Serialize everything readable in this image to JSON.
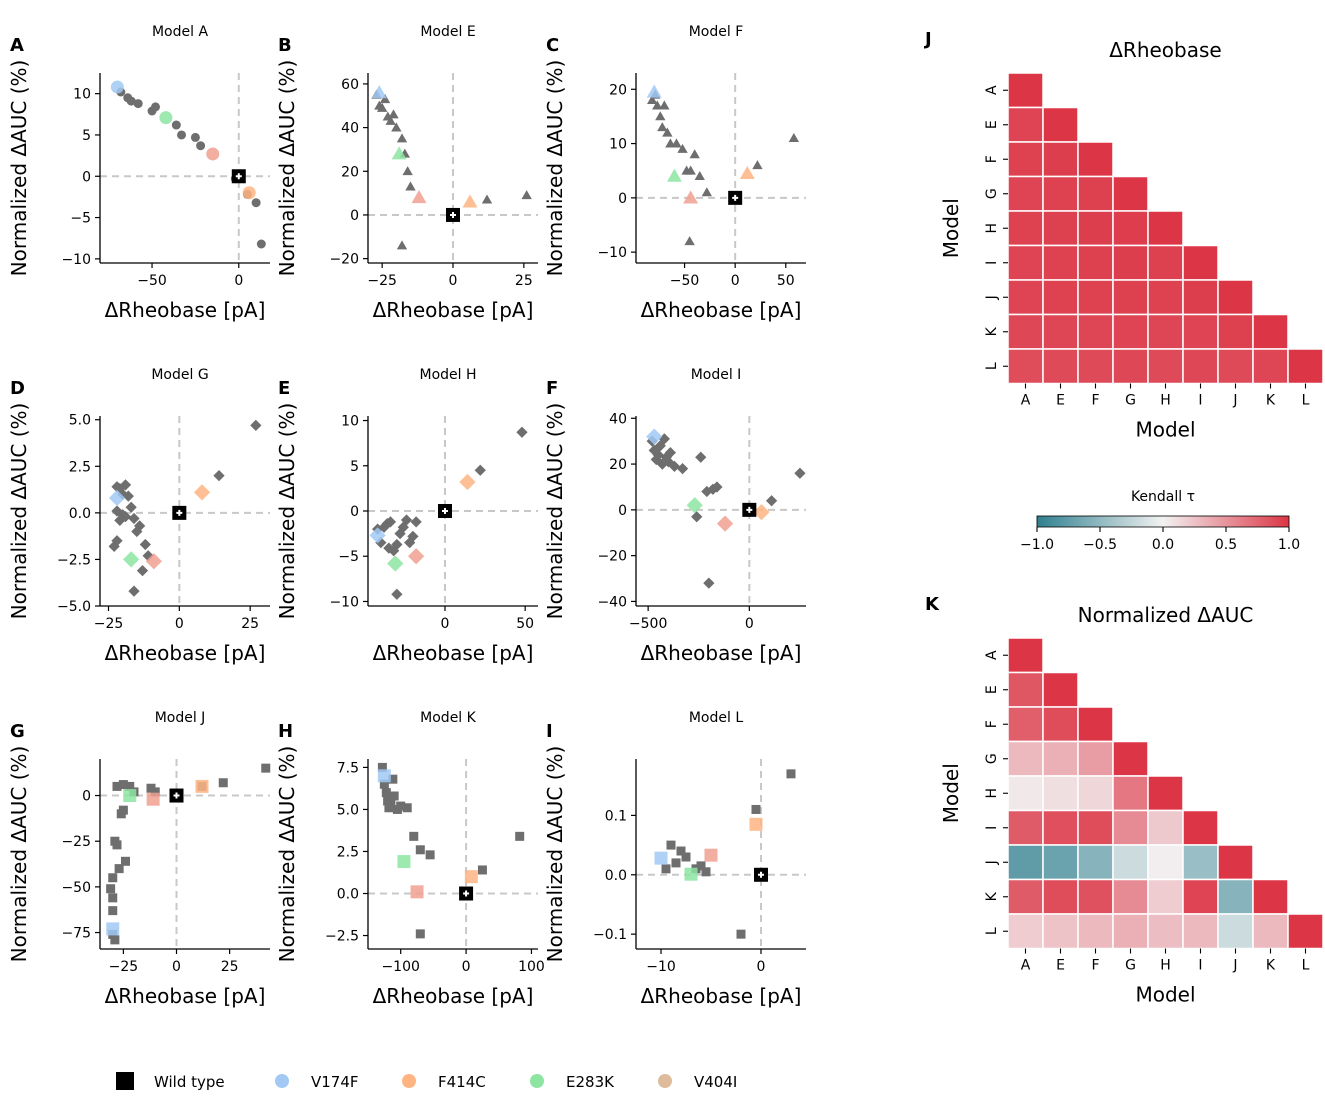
{
  "colors": {
    "wild_type": "#000000",
    "V174F": "#a1c9f4",
    "F414C": "#ffb482",
    "E283K": "#8de5a1",
    "V404I": "#debb9b",
    "V404I_plot": "#f0a090",
    "other": "#6e6e6e",
    "zero_line": "#c8c8c8",
    "cmap_low": "#2f7f8f",
    "cmap_mid": "#f2f2f2",
    "cmap_high": "#dc3545"
  },
  "legend": {
    "items": [
      {
        "label": "Wild type",
        "color": "#000000",
        "marker": "square"
      },
      {
        "label": "V174F",
        "color": "#a1c9f4",
        "marker": "circle"
      },
      {
        "label": "F414C",
        "color": "#ffb482",
        "marker": "circle"
      },
      {
        "label": "E283K",
        "color": "#8de5a1",
        "marker": "circle"
      },
      {
        "label": "V404I",
        "color": "#debb9b",
        "marker": "circle"
      }
    ]
  },
  "chart_data": [
    {
      "panel": "A",
      "type": "scatter",
      "title": "Model A",
      "marker": "circle",
      "xlabel": "ΔRheobase [pA]",
      "ylabel": "Normalized ΔAUC (%)",
      "xlim": [
        -80,
        18
      ],
      "ylim": [
        -10.5,
        12.5
      ],
      "xticks": [
        -50,
        0
      ],
      "yticks": [
        -10,
        -5,
        0,
        5,
        10
      ],
      "points": [
        [
          -68,
          10.2
        ],
        [
          -64,
          9.5
        ],
        [
          -62,
          9.1
        ],
        [
          -58,
          8.8
        ],
        [
          -50,
          7.9
        ],
        [
          -48,
          8.4
        ],
        [
          -36,
          6.2
        ],
        [
          -33,
          5.0
        ],
        [
          -25,
          4.7
        ],
        [
          -22,
          3.7
        ],
        [
          -2,
          -0.3
        ],
        [
          5,
          -2.2
        ],
        [
          10,
          -3.2
        ],
        [
          13,
          -8.2
        ]
      ],
      "mutants": {
        "V174F": [
          -70,
          10.8
        ],
        "E283K": [
          -42,
          7.1
        ],
        "V404I": [
          -15,
          2.7
        ],
        "F414C": [
          6,
          -2.0
        ]
      },
      "wild_type": [
        0,
        0
      ]
    },
    {
      "panel": "B",
      "type": "scatter",
      "title": "Model E",
      "marker": "triangle",
      "xlabel": "ΔRheobase [pA]",
      "ylabel": "Normalized ΔAUC (%)",
      "xlim": [
        -30,
        30
      ],
      "ylim": [
        -22,
        65
      ],
      "xticks": [
        -25,
        0,
        25
      ],
      "yticks": [
        -20,
        0,
        20,
        40,
        60
      ],
      "points": [
        [
          -27,
          55
        ],
        [
          -26,
          50
        ],
        [
          -25,
          49
        ],
        [
          -24,
          53
        ],
        [
          -23,
          45
        ],
        [
          -22,
          43
        ],
        [
          -21,
          46
        ],
        [
          -20,
          40
        ],
        [
          -18,
          35
        ],
        [
          -17,
          28
        ],
        [
          -16,
          20
        ],
        [
          -15,
          13
        ],
        [
          -18,
          -14
        ],
        [
          12,
          7
        ],
        [
          26,
          9
        ],
        [
          0,
          1
        ]
      ],
      "mutants": {
        "V174F": [
          -26,
          56
        ],
        "E283K": [
          -19,
          28
        ],
        "V404I": [
          -12,
          8
        ],
        "F414C": [
          6,
          6
        ]
      },
      "wild_type": [
        0,
        0
      ]
    },
    {
      "panel": "C",
      "type": "scatter",
      "title": "Model F",
      "marker": "triangle",
      "xlabel": "ΔRheobase [pA]",
      "ylabel": "Normalized ΔAUC (%)",
      "xlim": [
        -98,
        70
      ],
      "ylim": [
        -12,
        23
      ],
      "xticks": [
        -50,
        0,
        50
      ],
      "yticks": [
        -10,
        0,
        10,
        20
      ],
      "points": [
        [
          -82,
          18
        ],
        [
          -79,
          19
        ],
        [
          -77,
          17
        ],
        [
          -74,
          15
        ],
        [
          -72,
          13
        ],
        [
          -70,
          17
        ],
        [
          -67,
          12
        ],
        [
          -64,
          10
        ],
        [
          -58,
          10
        ],
        [
          -52,
          9
        ],
        [
          -48,
          5
        ],
        [
          -44,
          5
        ],
        [
          -40,
          8
        ],
        [
          -35,
          4
        ],
        [
          -28,
          1
        ],
        [
          -45,
          -8
        ],
        [
          22,
          6
        ],
        [
          58,
          11
        ]
      ],
      "mutants": {
        "V174F": [
          -80,
          19.5
        ],
        "E283K": [
          -60,
          4
        ],
        "V404I": [
          -44,
          0
        ],
        "F414C": [
          12,
          4.5
        ]
      },
      "wild_type": [
        0,
        0
      ]
    },
    {
      "panel": "D",
      "type": "scatter",
      "title": "Model G",
      "marker": "diamond",
      "xlabel": "ΔRheobase [pA]",
      "ylabel": "Normalized ΔAUC (%)",
      "xlim": [
        -28,
        32
      ],
      "ylim": [
        -5,
        5.2
      ],
      "xticks": [
        -25,
        0,
        25
      ],
      "yticks": [
        -5.0,
        -2.5,
        0.0,
        2.5,
        5.0
      ],
      "points": [
        [
          -22,
          1.4
        ],
        [
          -21,
          1.3
        ],
        [
          -20,
          1.0
        ],
        [
          -19,
          1.5
        ],
        [
          -18,
          0.9
        ],
        [
          -22,
          0.1
        ],
        [
          -21,
          -0.4
        ],
        [
          -20,
          -0.1
        ],
        [
          -19,
          -0.2
        ],
        [
          -17,
          0.3
        ],
        [
          -16,
          -0.3
        ],
        [
          -15,
          -1.0
        ],
        [
          -14,
          -0.7
        ],
        [
          -12,
          -1.7
        ],
        [
          -11,
          -2.3
        ],
        [
          -13,
          -3.1
        ],
        [
          -23,
          -1.8
        ],
        [
          -22,
          -1.5
        ],
        [
          -16,
          -4.2
        ],
        [
          14,
          2.0
        ],
        [
          27,
          4.7
        ]
      ],
      "mutants": {
        "V174F": [
          -22,
          0.8
        ],
        "E283K": [
          -17,
          -2.5
        ],
        "V404I": [
          -9,
          -2.6
        ],
        "F414C": [
          8,
          1.1
        ]
      },
      "wild_type": [
        0,
        0
      ]
    },
    {
      "panel": "E",
      "type": "scatter",
      "title": "Model H",
      "marker": "diamond",
      "xlabel": "ΔRheobase [pA]",
      "ylabel": "Normalized ΔAUC (%)",
      "xlim": [
        -48,
        58
      ],
      "ylim": [
        -10.5,
        10.5
      ],
      "xticks": [
        0,
        50
      ],
      "yticks": [
        -10,
        -5,
        0,
        5,
        10
      ],
      "points": [
        [
          -42,
          -2.0
        ],
        [
          -40,
          -3.5
        ],
        [
          -38,
          -1.8
        ],
        [
          -36,
          -1.4
        ],
        [
          -35,
          -4.1
        ],
        [
          -34,
          -1.2
        ],
        [
          -32,
          -4.4
        ],
        [
          -30,
          -3.7
        ],
        [
          -28,
          -2.5
        ],
        [
          -26,
          -1.8
        ],
        [
          -24,
          -1.0
        ],
        [
          -22,
          -3.5
        ],
        [
          -20,
          -2.8
        ],
        [
          -18,
          -1.2
        ],
        [
          -30,
          -9.2
        ],
        [
          22,
          4.5
        ],
        [
          48,
          8.7
        ]
      ],
      "mutants": {
        "V174F": [
          -42,
          -2.7
        ],
        "E283K": [
          -31,
          -5.8
        ],
        "V404I": [
          -18,
          -5.0
        ],
        "F414C": [
          14,
          3.2
        ]
      },
      "wild_type": [
        0,
        0
      ]
    },
    {
      "panel": "F",
      "type": "scatter",
      "title": "Model I",
      "marker": "diamond",
      "xlabel": "ΔRheobase [pA]",
      "ylabel": "Normalized ΔAUC (%)",
      "xlim": [
        -560,
        280
      ],
      "ylim": [
        -42,
        41
      ],
      "xticks": [
        -500,
        0
      ],
      "yticks": [
        -40,
        -20,
        0,
        20,
        40
      ],
      "points": [
        [
          -480,
          30
        ],
        [
          -470,
          26
        ],
        [
          -460,
          22
        ],
        [
          -450,
          24
        ],
        [
          -440,
          28
        ],
        [
          -430,
          20
        ],
        [
          -420,
          31
        ],
        [
          -410,
          23
        ],
        [
          -400,
          21
        ],
        [
          -390,
          25
        ],
        [
          -370,
          19
        ],
        [
          -330,
          18
        ],
        [
          -240,
          23
        ],
        [
          -210,
          8
        ],
        [
          -180,
          9
        ],
        [
          -160,
          10
        ],
        [
          -260,
          -3
        ],
        [
          -200,
          -32
        ],
        [
          110,
          4
        ],
        [
          250,
          16
        ]
      ],
      "mutants": {
        "V174F": [
          -470,
          32
        ],
        "E283K": [
          -270,
          2
        ],
        "V404I": [
          -120,
          -6
        ],
        "F414C": [
          60,
          -1
        ]
      },
      "wild_type": [
        0,
        0
      ]
    },
    {
      "panel": "G",
      "type": "scatter",
      "title": "Model J",
      "marker": "square",
      "xlabel": "ΔRheobase [pA]",
      "ylabel": "Normalized ΔAUC (%)",
      "xlim": [
        -36,
        44
      ],
      "ylim": [
        -84,
        20
      ],
      "xticks": [
        -25,
        0,
        25
      ],
      "yticks": [
        -75,
        -50,
        -25,
        0
      ],
      "points": [
        [
          -29,
          -25
        ],
        [
          -28,
          -27
        ],
        [
          -30,
          -45
        ],
        [
          -31,
          -51
        ],
        [
          -30,
          -56
        ],
        [
          -30,
          -63
        ],
        [
          -30,
          -76
        ],
        [
          -29,
          -79
        ],
        [
          -27,
          -40
        ],
        [
          -24,
          -36
        ],
        [
          -26,
          -10
        ],
        [
          -25,
          -8
        ],
        [
          -28,
          5
        ],
        [
          -25,
          6
        ],
        [
          -22,
          5
        ],
        [
          -20,
          2
        ],
        [
          -12,
          4
        ],
        [
          -10,
          2
        ],
        [
          12,
          5
        ],
        [
          22,
          7
        ],
        [
          42,
          15
        ]
      ],
      "mutants": {
        "V174F": [
          -30,
          -73
        ],
        "E283K": [
          -22,
          0
        ],
        "V404I": [
          -11,
          -2
        ],
        "F414C": [
          12,
          5
        ]
      },
      "wild_type": [
        0,
        0
      ]
    },
    {
      "panel": "H",
      "type": "scatter",
      "title": "Model K",
      "marker": "square",
      "xlabel": "ΔRheobase [pA]",
      "ylabel": "Normalized ΔAUC (%)",
      "xlim": [
        -150,
        110
      ],
      "ylim": [
        -3.3,
        8.0
      ],
      "xticks": [
        -100,
        0,
        100
      ],
      "yticks": [
        -2.5,
        0.0,
        2.5,
        5.0,
        7.5
      ],
      "points": [
        [
          -128,
          7.5
        ],
        [
          -125,
          6.5
        ],
        [
          -122,
          6.0
        ],
        [
          -120,
          5.5
        ],
        [
          -118,
          5.1
        ],
        [
          -115,
          5.3
        ],
        [
          -112,
          6.8
        ],
        [
          -110,
          5.8
        ],
        [
          -105,
          5.0
        ],
        [
          -100,
          5.2
        ],
        [
          -90,
          5.1
        ],
        [
          -80,
          3.4
        ],
        [
          -70,
          2.6
        ],
        [
          -55,
          2.3
        ],
        [
          -70,
          -2.4
        ],
        [
          25,
          1.4
        ],
        [
          82,
          3.4
        ]
      ],
      "mutants": {
        "V174F": [
          -125,
          7.0
        ],
        "E283K": [
          -95,
          1.9
        ],
        "V404I": [
          -75,
          0.1
        ],
        "F414C": [
          8,
          1.0
        ]
      },
      "wild_type": [
        0,
        0
      ]
    },
    {
      "panel": "I",
      "type": "scatter",
      "title": "Model L",
      "marker": "square",
      "xlabel": "ΔRheobase [pA]",
      "ylabel": "Normalized ΔAUC (%)",
      "xlim": [
        -12.5,
        4.5
      ],
      "ylim": [
        -0.125,
        0.195
      ],
      "xticks": [
        -10,
        0
      ],
      "yticks": [
        -0.1,
        0.0,
        0.1
      ],
      "points": [
        [
          -9,
          0.05
        ],
        [
          -8.5,
          0.02
        ],
        [
          -8,
          0.04
        ],
        [
          -7.5,
          0.03
        ],
        [
          -6.5,
          0.01
        ],
        [
          -6,
          0.015
        ],
        [
          -5.5,
          0.005
        ],
        [
          -9.5,
          0.01
        ],
        [
          -0.5,
          0.11
        ],
        [
          3,
          0.17
        ],
        [
          -2,
          -0.1
        ]
      ],
      "mutants": {
        "V174F": [
          -10,
          0.028
        ],
        "E283K": [
          -7,
          0.001
        ],
        "V404I": [
          -5,
          0.033
        ],
        "F414C": [
          -0.5,
          0.085
        ]
      },
      "wild_type": [
        0,
        0
      ]
    },
    {
      "panel": "J",
      "type": "heatmap",
      "title": "ΔRheobase",
      "xlabel": "Model",
      "ylabel": "Model",
      "labels": [
        "A",
        "E",
        "F",
        "G",
        "H",
        "I",
        "J",
        "K",
        "L"
      ],
      "values": [
        [
          1.0
        ],
        [
          0.92,
          1.0
        ],
        [
          0.93,
          0.95,
          1.0
        ],
        [
          0.92,
          0.93,
          0.94,
          1.0
        ],
        [
          0.93,
          0.94,
          0.95,
          0.96,
          1.0
        ],
        [
          0.92,
          0.93,
          0.94,
          0.95,
          0.94,
          1.0
        ],
        [
          0.92,
          0.93,
          0.93,
          0.94,
          0.93,
          0.95,
          1.0
        ],
        [
          0.9,
          0.91,
          0.91,
          0.92,
          0.91,
          0.92,
          0.94,
          1.0
        ],
        [
          0.88,
          0.89,
          0.89,
          0.9,
          0.89,
          0.9,
          0.89,
          0.91,
          1.0
        ]
      ]
    },
    {
      "panel": "K",
      "type": "heatmap",
      "title": "Normalized ΔAUC",
      "xlabel": "Model",
      "ylabel": "Model",
      "labels": [
        "A",
        "E",
        "F",
        "G",
        "H",
        "I",
        "J",
        "K",
        "L"
      ],
      "values": [
        [
          1.0
        ],
        [
          0.82,
          1.0
        ],
        [
          0.78,
          0.88,
          1.0
        ],
        [
          0.3,
          0.35,
          0.45,
          1.0
        ],
        [
          0.05,
          0.1,
          0.15,
          0.65,
          1.0
        ],
        [
          0.8,
          0.86,
          0.88,
          0.55,
          0.22,
          1.0
        ],
        [
          -0.75,
          -0.7,
          -0.55,
          -0.2,
          0.02,
          -0.45,
          1.0
        ],
        [
          0.8,
          0.88,
          0.85,
          0.55,
          0.2,
          0.92,
          -0.55,
          1.0
        ],
        [
          0.2,
          0.25,
          0.3,
          0.35,
          0.28,
          0.3,
          -0.2,
          0.3,
          1.0
        ]
      ]
    }
  ],
  "colorbar": {
    "label": "Kendall τ",
    "vmin": -1.0,
    "vmax": 1.0,
    "ticks": [
      -1.0,
      -0.5,
      0.0,
      0.5,
      1.0
    ],
    "tick_labels": [
      "−1.0",
      "−0.5",
      "0.0",
      "0.5",
      "1.0"
    ]
  }
}
